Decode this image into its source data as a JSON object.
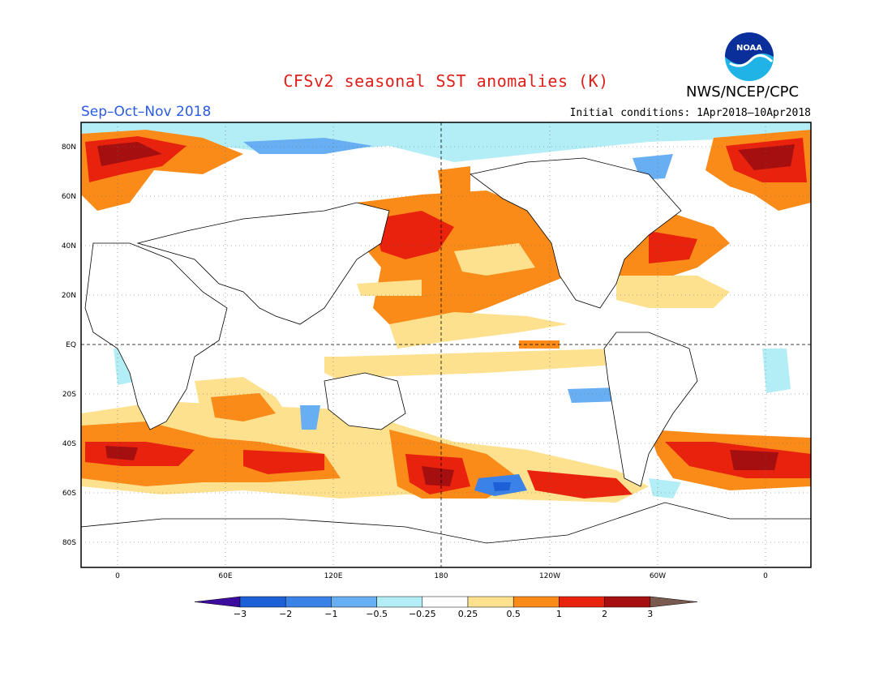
{
  "header": {
    "title": "CFSv2 seasonal SST anomalies (K)",
    "agency": "NWS/NCEP/CPC",
    "season": "Sep–Oct–Nov 2018",
    "initial_conditions": "Initial conditions: 1Apr2018–10Apr2018",
    "logo_text": "NOAA"
  },
  "axes": {
    "lat_ticks": [
      "80N",
      "60N",
      "40N",
      "20N",
      "EQ",
      "20S",
      "40S",
      "60S",
      "80S"
    ],
    "lon_ticks": [
      "0",
      "60E",
      "120E",
      "180",
      "120W",
      "60W",
      "0"
    ]
  },
  "colorbar": {
    "labels": [
      "−3",
      "−2",
      "−1",
      "−0.5",
      "−0.25",
      "0.25",
      "0.5",
      "1",
      "2",
      "3"
    ],
    "colors": [
      "#3b0c9e",
      "#1d5fd6",
      "#3b82e8",
      "#67aef2",
      "#b3eef6",
      "#ffffff",
      "#fde18f",
      "#fb8b19",
      "#e8220d",
      "#a50f0f",
      "#7a5a4f"
    ]
  }
}
